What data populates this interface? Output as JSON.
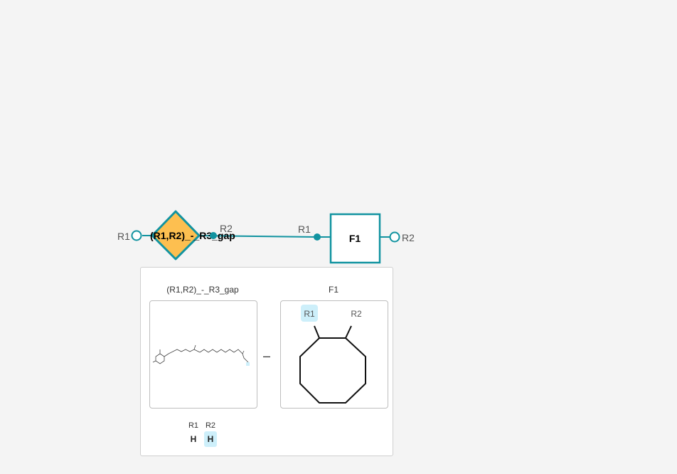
{
  "graph": {
    "monomer_left": {
      "name": "(R1,R2)_-_R3_gap",
      "port_left": "R1",
      "port_right": "R2"
    },
    "monomer_right": {
      "name": "F1",
      "port_left": "R1",
      "port_right": "R2"
    },
    "colors": {
      "teal": "#1193a0",
      "diamond_fill": "#fdbf50",
      "highlight": "#cdeffa"
    }
  },
  "panel": {
    "left_title": "(R1,R2)_-_R3_gap",
    "right_title": "F1",
    "operator": "–",
    "right_r1": "R1",
    "right_r2": "R2",
    "rgroups": {
      "headers": [
        "R1",
        "R2"
      ],
      "values": [
        "H",
        "H"
      ]
    }
  }
}
